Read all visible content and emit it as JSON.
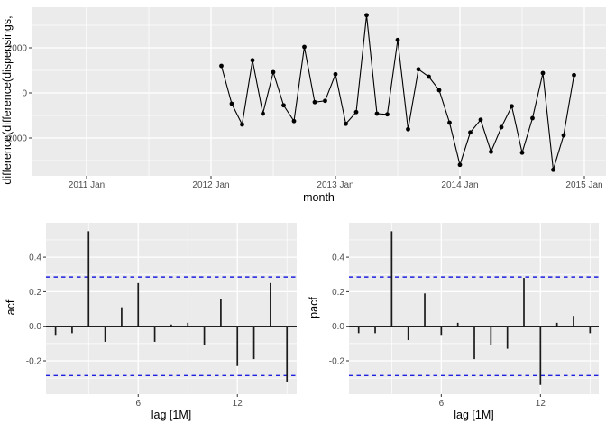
{
  "colors": {
    "panel_bg": "#EBEBEB",
    "grid": "#FFFFFF",
    "series": "#000000",
    "conf_band": "#2020E0",
    "tick_text": "#4D4D4D",
    "axis_title": "#000000",
    "tick_mark": "#333333"
  },
  "chart_data": [
    {
      "type": "line",
      "title": "",
      "ylabel": "difference(difference(dispensings,",
      "xlabel": "month",
      "ylim": [
        -3680,
        3800
      ],
      "y_ticks": [
        2000,
        0,
        -2000
      ],
      "y_minor": [
        3000,
        1000,
        -1000,
        -3000
      ],
      "x_ticks": [
        {
          "label": "2011 Jan",
          "m": 0
        },
        {
          "label": "2012 Jan",
          "m": 12
        },
        {
          "label": "2013 Jan",
          "m": 24
        },
        {
          "label": "2014 Jan",
          "m": 36
        },
        {
          "label": "2015 Jan",
          "m": 48
        }
      ],
      "x_minor_m": [
        6,
        18,
        30,
        42
      ],
      "m_start": 13,
      "x": [
        "2012 Feb",
        "2012 Mar",
        "2012 Apr",
        "2012 May",
        "2012 Jun",
        "2012 Jul",
        "2012 Aug",
        "2012 Sep",
        "2012 Oct",
        "2012 Nov",
        "2012 Dec",
        "2013 Jan",
        "2013 Feb",
        "2013 Mar",
        "2013 Apr",
        "2013 May",
        "2013 Jun",
        "2013 Jul",
        "2013 Aug",
        "2013 Sep",
        "2013 Oct",
        "2013 Nov",
        "2013 Dec",
        "2014 Jan",
        "2014 Feb",
        "2014 Mar",
        "2014 Apr",
        "2014 May",
        "2014 Jun",
        "2014 Jul",
        "2014 Aug",
        "2014 Sep",
        "2014 Oct",
        "2014 Nov",
        "2014 Dec"
      ],
      "y": [
        1200,
        -480,
        -1400,
        1450,
        -920,
        920,
        -550,
        -1250,
        2040,
        -410,
        -350,
        830,
        -1370,
        -850,
        3450,
        -920,
        -950,
        2350,
        -1610,
        1050,
        720,
        120,
        -1320,
        -3190,
        -1750,
        -1190,
        -2610,
        -1520,
        -590,
        -2650,
        -1120,
        880,
        -3410,
        -1880,
        790
      ]
    },
    {
      "type": "bar",
      "title": "",
      "ylabel": "acf",
      "xlabel": "lag [1M]",
      "ylim": [
        -0.39,
        0.6
      ],
      "y_ticks": [
        0.4,
        0.2,
        0.0,
        -0.2
      ],
      "y_minor": [
        0.5,
        0.3,
        0.1,
        -0.1,
        -0.3
      ],
      "x_ticks": [
        6,
        12
      ],
      "x_minor": [
        3,
        9,
        15
      ],
      "conf_level": 0.285,
      "lags": [
        1,
        2,
        3,
        4,
        5,
        6,
        7,
        8,
        9,
        10,
        11,
        12,
        13,
        14,
        15
      ],
      "values": [
        -0.05,
        -0.04,
        0.55,
        -0.09,
        0.11,
        0.25,
        -0.09,
        0.01,
        0.02,
        -0.11,
        0.16,
        -0.23,
        -0.19,
        0.25,
        -0.32
      ]
    },
    {
      "type": "bar",
      "title": "",
      "ylabel": "pacf",
      "xlabel": "lag [1M]",
      "ylim": [
        -0.39,
        0.6
      ],
      "y_ticks": [
        0.4,
        0.2,
        0.0,
        -0.2
      ],
      "y_minor": [
        0.5,
        0.3,
        0.1,
        -0.1,
        -0.3
      ],
      "x_ticks": [
        6,
        12
      ],
      "x_minor": [
        3,
        9,
        15
      ],
      "conf_level": 0.285,
      "lags": [
        1,
        2,
        3,
        4,
        5,
        6,
        7,
        8,
        9,
        10,
        11,
        12,
        13,
        14,
        15
      ],
      "values": [
        -0.04,
        -0.04,
        0.55,
        -0.08,
        0.19,
        -0.05,
        0.02,
        -0.19,
        -0.11,
        -0.13,
        0.28,
        -0.34,
        0.02,
        0.06,
        -0.04
      ]
    }
  ]
}
